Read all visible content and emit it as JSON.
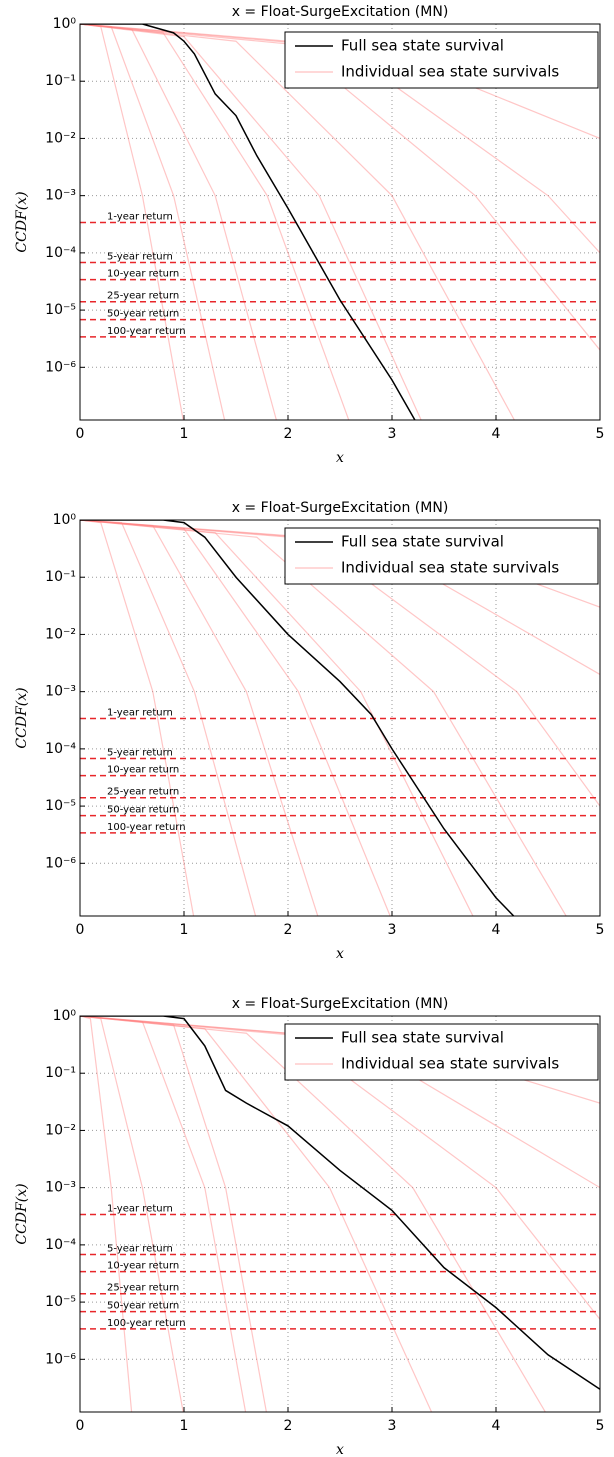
{
  "chart_data": [
    {
      "type": "line",
      "title": "x = Float-SurgeExcitation (MN)",
      "x_label": "x",
      "y_label": "CCDF(x)",
      "log_y": true,
      "grid": true,
      "legend": "upper right",
      "xlim": [
        0,
        5
      ],
      "xticks": [
        0,
        1,
        2,
        3,
        4,
        5
      ],
      "ylim": [
        1.2e-07,
        1
      ],
      "yticks": [
        {
          "value": 1,
          "label": "10⁰"
        },
        {
          "value": 0.1,
          "label": "10⁻¹"
        },
        {
          "value": 0.01,
          "label": "10⁻²"
        },
        {
          "value": 0.001,
          "label": "10⁻³"
        },
        {
          "value": 0.0001,
          "label": "10⁻⁴"
        },
        {
          "value": 1e-05,
          "label": "10⁻⁵"
        },
        {
          "value": 1e-06,
          "label": "10⁻⁶"
        }
      ],
      "series": [
        {
          "name": "Full sea state survival",
          "color": "#000000",
          "x": [
            0,
            0.6,
            0.9,
            1.0,
            1.1,
            1.3,
            1.5,
            1.7,
            2.0,
            2.5,
            3.0,
            3.22
          ],
          "values": [
            1,
            1,
            0.7,
            0.5,
            0.3,
            0.06,
            0.025,
            0.005,
            0.0006,
            1.5e-05,
            6e-07,
            1.2e-07
          ]
        },
        {
          "name": "Individual sea state survivals",
          "color": "#ff8080",
          "curves": [
            {
              "x": [
                0,
                0.2,
                0.6,
                1.0
              ],
              "values": [
                1,
                0.9,
                0.001,
                1e-07
              ]
            },
            {
              "x": [
                0,
                0.3,
                0.9,
                1.4
              ],
              "values": [
                1,
                0.9,
                0.001,
                1e-07
              ]
            },
            {
              "x": [
                0,
                0.5,
                1.3,
                1.9
              ],
              "values": [
                1,
                0.8,
                0.001,
                1e-07
              ]
            },
            {
              "x": [
                0,
                0.8,
                1.8,
                2.6
              ],
              "values": [
                1,
                0.7,
                0.001,
                1e-07
              ]
            },
            {
              "x": [
                0,
                1.0,
                2.3,
                3.3
              ],
              "values": [
                1,
                0.6,
                0.001,
                1e-07
              ]
            },
            {
              "x": [
                0,
                1.5,
                3.0,
                4.2
              ],
              "values": [
                1,
                0.5,
                0.001,
                1e-07
              ]
            },
            {
              "x": [
                0,
                2.0,
                3.8,
                5.0
              ],
              "values": [
                1,
                0.5,
                0.001,
                2e-06
              ]
            },
            {
              "x": [
                0,
                2.5,
                4.5,
                5.0
              ],
              "values": [
                1,
                0.4,
                0.001,
                0.0001
              ]
            },
            {
              "x": [
                0,
                3.0,
                5.0
              ],
              "values": [
                1,
                0.3,
                0.01
              ]
            }
          ]
        }
      ],
      "hlines": [
        {
          "label": "1-year return",
          "value": 0.00034
        },
        {
          "label": "5-year return",
          "value": 6.8e-05
        },
        {
          "label": "10-year return",
          "value": 3.4e-05
        },
        {
          "label": "25-year return",
          "value": 1.4e-05
        },
        {
          "label": "50-year return",
          "value": 6.8e-06
        },
        {
          "label": "100-year return",
          "value": 3.4e-06
        }
      ],
      "hline_color": "#e8262a"
    },
    {
      "type": "line",
      "title": "x = Float-SurgeExcitation (MN)",
      "x_label": "x",
      "y_label": "CCDF(x)",
      "log_y": true,
      "grid": true,
      "legend": "upper right",
      "xlim": [
        0,
        5
      ],
      "xticks": [
        0,
        1,
        2,
        3,
        4,
        5
      ],
      "ylim": [
        1.2e-07,
        1
      ],
      "yticks": [
        {
          "value": 1,
          "label": "10⁰"
        },
        {
          "value": 0.1,
          "label": "10⁻¹"
        },
        {
          "value": 0.01,
          "label": "10⁻²"
        },
        {
          "value": 0.001,
          "label": "10⁻³"
        },
        {
          "value": 0.0001,
          "label": "10⁻⁴"
        },
        {
          "value": 1e-05,
          "label": "10⁻⁵"
        },
        {
          "value": 1e-06,
          "label": "10⁻⁶"
        }
      ],
      "series": [
        {
          "name": "Full sea state survival",
          "color": "#000000",
          "x": [
            0,
            0.8,
            1.0,
            1.2,
            1.5,
            2.0,
            2.5,
            2.8,
            3.0,
            3.5,
            4.0,
            4.17
          ],
          "values": [
            1,
            1,
            0.9,
            0.5,
            0.1,
            0.01,
            0.0015,
            0.0004,
            0.0001,
            4e-06,
            2.5e-07,
            1.2e-07
          ]
        },
        {
          "name": "Individual sea state survivals",
          "color": "#ff8080",
          "curves": [
            {
              "x": [
                0,
                0.2,
                0.7,
                1.1
              ],
              "values": [
                1,
                0.9,
                0.001,
                1e-07
              ]
            },
            {
              "x": [
                0,
                0.4,
                1.1,
                1.7
              ],
              "values": [
                1,
                0.9,
                0.001,
                1e-07
              ]
            },
            {
              "x": [
                0,
                0.7,
                1.6,
                2.3
              ],
              "values": [
                1,
                0.8,
                0.001,
                1e-07
              ]
            },
            {
              "x": [
                0,
                1.0,
                2.1,
                3.0
              ],
              "values": [
                1,
                0.7,
                0.001,
                1e-07
              ]
            },
            {
              "x": [
                0,
                1.3,
                2.7,
                3.8
              ],
              "values": [
                1,
                0.6,
                0.001,
                1e-07
              ]
            },
            {
              "x": [
                0,
                1.7,
                3.4,
                4.7
              ],
              "values": [
                1,
                0.5,
                0.001,
                1e-07
              ]
            },
            {
              "x": [
                0,
                2.2,
                4.2,
                5.0
              ],
              "values": [
                1,
                0.5,
                0.001,
                1e-05
              ]
            },
            {
              "x": [
                0,
                2.8,
                5.0
              ],
              "values": [
                1,
                0.4,
                0.002
              ]
            },
            {
              "x": [
                0,
                3.5,
                5.0
              ],
              "values": [
                1,
                0.3,
                0.03
              ]
            }
          ]
        }
      ],
      "hlines": [
        {
          "label": "1-year return",
          "value": 0.00034
        },
        {
          "label": "5-year return",
          "value": 6.8e-05
        },
        {
          "label": "10-year return",
          "value": 3.4e-05
        },
        {
          "label": "25-year return",
          "value": 1.4e-05
        },
        {
          "label": "50-year return",
          "value": 6.8e-06
        },
        {
          "label": "100-year return",
          "value": 3.4e-06
        }
      ],
      "hline_color": "#e8262a"
    },
    {
      "type": "line",
      "title": "x = Float-SurgeExcitation (MN)",
      "x_label": "x",
      "y_label": "CCDF(x)",
      "log_y": true,
      "grid": true,
      "legend": "upper right",
      "xlim": [
        0,
        5
      ],
      "xticks": [
        0,
        1,
        2,
        3,
        4,
        5
      ],
      "ylim": [
        1.2e-07,
        1
      ],
      "yticks": [
        {
          "value": 1,
          "label": "10⁰"
        },
        {
          "value": 0.1,
          "label": "10⁻¹"
        },
        {
          "value": 0.01,
          "label": "10⁻²"
        },
        {
          "value": 0.001,
          "label": "10⁻³"
        },
        {
          "value": 0.0001,
          "label": "10⁻⁴"
        },
        {
          "value": 1e-05,
          "label": "10⁻⁵"
        },
        {
          "value": 1e-06,
          "label": "10⁻⁶"
        }
      ],
      "series": [
        {
          "name": "Full sea state survival",
          "color": "#000000",
          "x": [
            0,
            0.8,
            1.0,
            1.2,
            1.4,
            1.6,
            2.0,
            2.5,
            3.0,
            3.5,
            4.0,
            4.5,
            5.0
          ],
          "values": [
            1,
            1,
            0.9,
            0.3,
            0.05,
            0.03,
            0.012,
            0.002,
            0.0004,
            4e-05,
            8e-06,
            1.2e-06,
            3e-07
          ]
        },
        {
          "name": "Individual sea state survivals",
          "color": "#ff8080",
          "curves": [
            {
              "x": [
                0,
                0.1,
                0.3,
                0.5
              ],
              "values": [
                1,
                0.9,
                0.001,
                1e-07
              ]
            },
            {
              "x": [
                0,
                0.2,
                0.6,
                1.0
              ],
              "values": [
                1,
                0.9,
                0.001,
                1e-07
              ]
            },
            {
              "x": [
                0,
                0.6,
                1.2,
                1.6
              ],
              "values": [
                1,
                0.8,
                0.001,
                1e-07
              ]
            },
            {
              "x": [
                0,
                0.9,
                1.4,
                1.8
              ],
              "values": [
                1,
                0.7,
                0.001,
                1e-07
              ]
            },
            {
              "x": [
                0,
                1.2,
                2.4,
                3.4
              ],
              "values": [
                1,
                0.6,
                0.001,
                1e-07
              ]
            },
            {
              "x": [
                0,
                1.6,
                3.2,
                4.5
              ],
              "values": [
                1,
                0.5,
                0.001,
                1e-07
              ]
            },
            {
              "x": [
                0,
                2.0,
                4.0,
                5.0
              ],
              "values": [
                1,
                0.5,
                0.001,
                5e-06
              ]
            },
            {
              "x": [
                0,
                2.6,
                5.0
              ],
              "values": [
                1,
                0.4,
                0.001
              ]
            },
            {
              "x": [
                0,
                3.2,
                5.0
              ],
              "values": [
                1,
                0.3,
                0.03
              ]
            }
          ]
        }
      ],
      "hlines": [
        {
          "label": "1-year return",
          "value": 0.00034
        },
        {
          "label": "5-year return",
          "value": 6.8e-05
        },
        {
          "label": "10-year return",
          "value": 3.4e-05
        },
        {
          "label": "25-year return",
          "value": 1.4e-05
        },
        {
          "label": "50-year return",
          "value": 6.8e-06
        },
        {
          "label": "100-year return",
          "value": 3.4e-06
        }
      ],
      "hline_color": "#e8262a"
    }
  ]
}
